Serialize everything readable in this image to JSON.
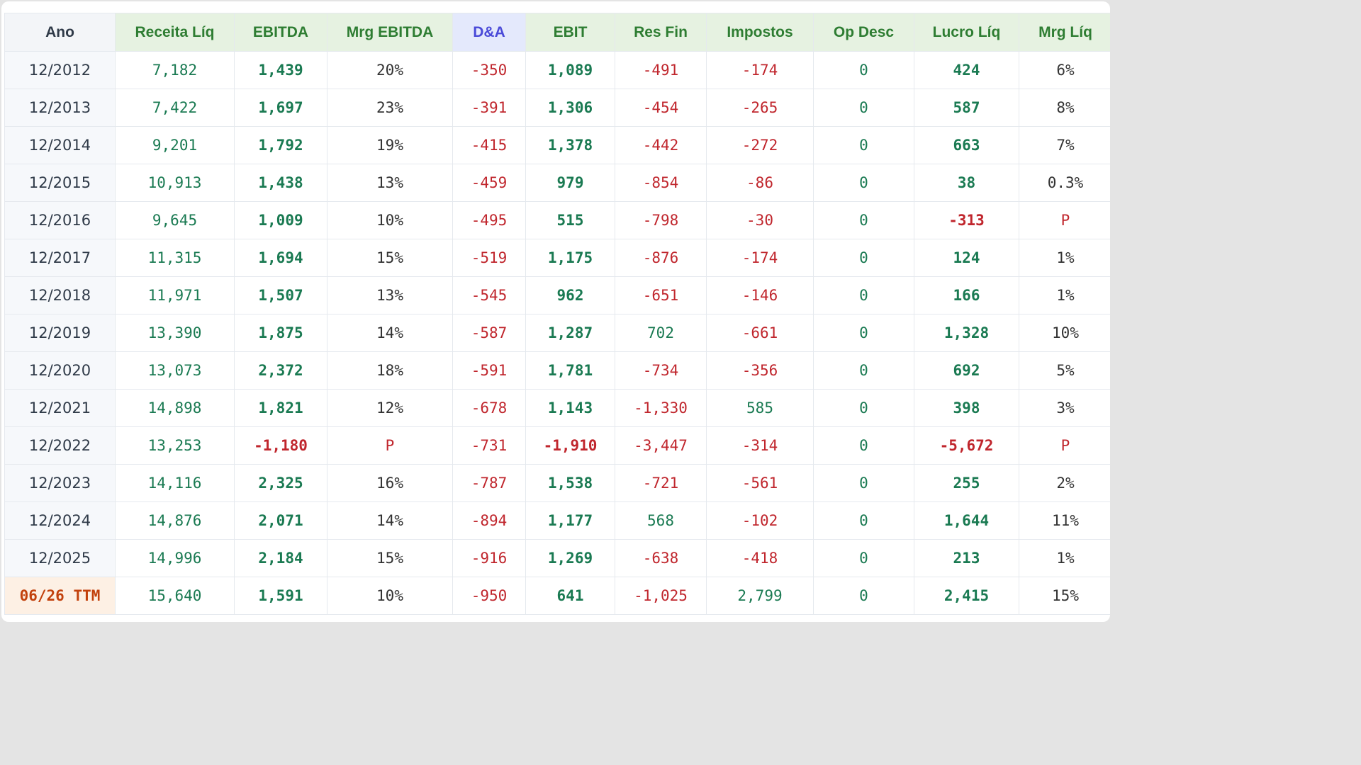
{
  "headers": [
    "Ano",
    "Receita Líq",
    "EBITDA",
    "Mrg EBITDA",
    "D&A",
    "EBIT",
    "Res Fin",
    "Impostos",
    "Op Desc",
    "Lucro Líq",
    "Mrg Líq"
  ],
  "rows": [
    {
      "ano": "12/2012",
      "receita": "7,182",
      "ebitda": "1,439",
      "mrg_ebitda": "20%",
      "da": "-350",
      "ebit": "1,089",
      "res_fin": "-491",
      "impostos": "-174",
      "op_desc": "0",
      "lucro": "424",
      "mrg_liq": "6%"
    },
    {
      "ano": "12/2013",
      "receita": "7,422",
      "ebitda": "1,697",
      "mrg_ebitda": "23%",
      "da": "-391",
      "ebit": "1,306",
      "res_fin": "-454",
      "impostos": "-265",
      "op_desc": "0",
      "lucro": "587",
      "mrg_liq": "8%"
    },
    {
      "ano": "12/2014",
      "receita": "9,201",
      "ebitda": "1,792",
      "mrg_ebitda": "19%",
      "da": "-415",
      "ebit": "1,378",
      "res_fin": "-442",
      "impostos": "-272",
      "op_desc": "0",
      "lucro": "663",
      "mrg_liq": "7%"
    },
    {
      "ano": "12/2015",
      "receita": "10,913",
      "ebitda": "1,438",
      "mrg_ebitda": "13%",
      "da": "-459",
      "ebit": "979",
      "res_fin": "-854",
      "impostos": "-86",
      "op_desc": "0",
      "lucro": "38",
      "mrg_liq": "0.3%"
    },
    {
      "ano": "12/2016",
      "receita": "9,645",
      "ebitda": "1,009",
      "mrg_ebitda": "10%",
      "da": "-495",
      "ebit": "515",
      "res_fin": "-798",
      "impostos": "-30",
      "op_desc": "0",
      "lucro": "-313",
      "mrg_liq": "P"
    },
    {
      "ano": "12/2017",
      "receita": "11,315",
      "ebitda": "1,694",
      "mrg_ebitda": "15%",
      "da": "-519",
      "ebit": "1,175",
      "res_fin": "-876",
      "impostos": "-174",
      "op_desc": "0",
      "lucro": "124",
      "mrg_liq": "1%"
    },
    {
      "ano": "12/2018",
      "receita": "11,971",
      "ebitda": "1,507",
      "mrg_ebitda": "13%",
      "da": "-545",
      "ebit": "962",
      "res_fin": "-651",
      "impostos": "-146",
      "op_desc": "0",
      "lucro": "166",
      "mrg_liq": "1%"
    },
    {
      "ano": "12/2019",
      "receita": "13,390",
      "ebitda": "1,875",
      "mrg_ebitda": "14%",
      "da": "-587",
      "ebit": "1,287",
      "res_fin": "702",
      "impostos": "-661",
      "op_desc": "0",
      "lucro": "1,328",
      "mrg_liq": "10%"
    },
    {
      "ano": "12/2020",
      "receita": "13,073",
      "ebitda": "2,372",
      "mrg_ebitda": "18%",
      "da": "-591",
      "ebit": "1,781",
      "res_fin": "-734",
      "impostos": "-356",
      "op_desc": "0",
      "lucro": "692",
      "mrg_liq": "5%"
    },
    {
      "ano": "12/2021",
      "receita": "14,898",
      "ebitda": "1,821",
      "mrg_ebitda": "12%",
      "da": "-678",
      "ebit": "1,143",
      "res_fin": "-1,330",
      "impostos": "585",
      "op_desc": "0",
      "lucro": "398",
      "mrg_liq": "3%"
    },
    {
      "ano": "12/2022",
      "receita": "13,253",
      "ebitda": "-1,180",
      "mrg_ebitda": "P",
      "da": "-731",
      "ebit": "-1,910",
      "res_fin": "-3,447",
      "impostos": "-314",
      "op_desc": "0",
      "lucro": "-5,672",
      "mrg_liq": "P"
    },
    {
      "ano": "12/2023",
      "receita": "14,116",
      "ebitda": "2,325",
      "mrg_ebitda": "16%",
      "da": "-787",
      "ebit": "1,538",
      "res_fin": "-721",
      "impostos": "-561",
      "op_desc": "0",
      "lucro": "255",
      "mrg_liq": "2%"
    },
    {
      "ano": "12/2024",
      "receita": "14,876",
      "ebitda": "2,071",
      "mrg_ebitda": "14%",
      "da": "-894",
      "ebit": "1,177",
      "res_fin": "568",
      "impostos": "-102",
      "op_desc": "0",
      "lucro": "1,644",
      "mrg_liq": "11%"
    },
    {
      "ano": "12/2025",
      "receita": "14,996",
      "ebitda": "2,184",
      "mrg_ebitda": "15%",
      "da": "-916",
      "ebit": "1,269",
      "res_fin": "-638",
      "impostos": "-418",
      "op_desc": "0",
      "lucro": "213",
      "mrg_liq": "1%"
    },
    {
      "ano": "06/26 TTM",
      "receita": "15,640",
      "ebitda": "1,591",
      "mrg_ebitda": "10%",
      "da": "-950",
      "ebit": "641",
      "res_fin": "-1,025",
      "impostos": "2,799",
      "op_desc": "0",
      "lucro": "2,415",
      "mrg_liq": "15%"
    }
  ],
  "colors": {
    "positive": "#1a7a52",
    "negative": "#c0262d",
    "header_green": "#2e7d32",
    "header_da": "#4a4ad8",
    "ttm": "#c2410c"
  }
}
